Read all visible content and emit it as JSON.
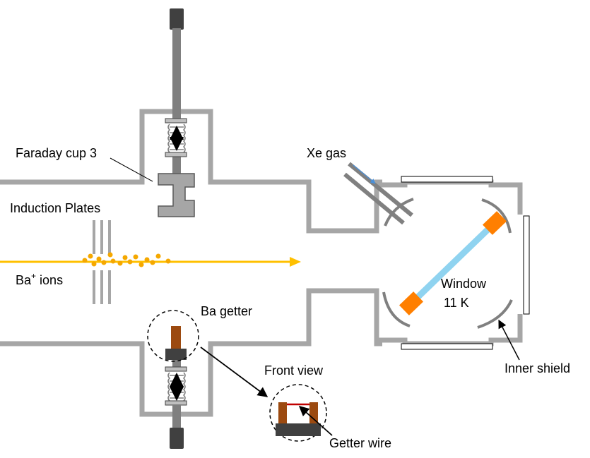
{
  "labels": {
    "faraday_cup": "Faraday cup 3",
    "induction_plates": "Induction Plates",
    "ba_ions_main": "Ba",
    "ba_ions_sup": "+",
    "ba_ions_rest": " ions",
    "xe_gas": "Xe gas",
    "window": "Window",
    "temperature": "11 K",
    "ba_getter": "Ba getter",
    "front_view": "Front view",
    "getter_wire": "Getter wire",
    "inner_shield": "Inner shield"
  },
  "colors": {
    "chamber_wall": "#A6A6A6",
    "rod": "#7F7F7F",
    "rod_cap": "#404040",
    "ion_beam": "#FFC000",
    "ion_particles": "#F5A800",
    "window_glass": "#8FD3F0",
    "window_holder": "#FF7F00",
    "getter_body": "#9C4A10",
    "getter_wire": "#C00000",
    "shield": "#808080"
  },
  "icons": {
    "bellows": "bellows-icon",
    "arrow": "double-arrow-icon"
  }
}
